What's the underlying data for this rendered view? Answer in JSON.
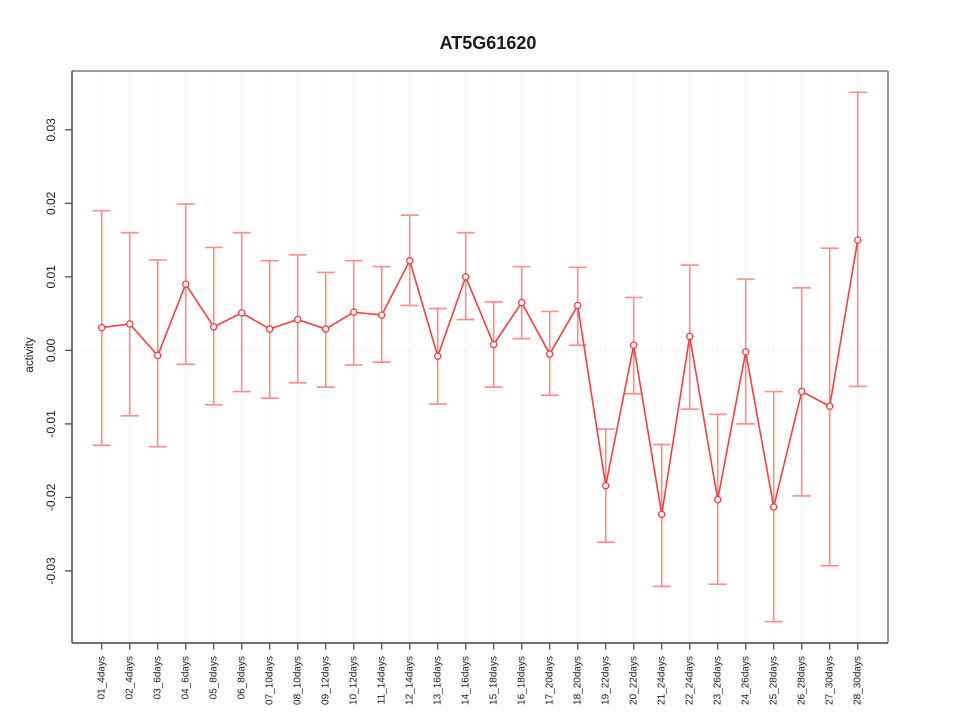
{
  "chart_data": {
    "type": "line",
    "title": "AT5G61620",
    "xlabel": "",
    "ylabel": "activity",
    "legend": "none",
    "grid": "vertical dotted gridlines at each category plus dotted horizontal line at y=0",
    "ylim": [
      -0.0398,
      0.038
    ],
    "yticks": [
      -0.03,
      -0.02,
      -0.01,
      0.0,
      0.01,
      0.02,
      0.03
    ],
    "ytick_labels": [
      "-0.03",
      "-0.02",
      "-0.01",
      "0.00",
      "0.01",
      "0.02",
      "0.03"
    ],
    "categories": [
      "01_4days",
      "02_4days",
      "03_6days",
      "04_6days",
      "05_8days",
      "06_8days",
      "07_10days",
      "08_10days",
      "09_12days",
      "10_12days",
      "11_14days",
      "12_14days",
      "13_16days",
      "14_16days",
      "15_18days",
      "16_18days",
      "17_20days",
      "18_20days",
      "19_22days",
      "20_22days",
      "21_24days",
      "22_24days",
      "23_26days",
      "24_26days",
      "25_28days",
      "26_28days",
      "27_30days",
      "28_30days"
    ],
    "series": [
      {
        "name": "activity",
        "marker": "open-circle",
        "values": [
          0.0031,
          0.0036,
          -0.0007,
          0.009,
          0.0032,
          0.0051,
          0.0029,
          0.0042,
          0.0029,
          0.0052,
          0.0048,
          0.0122,
          -0.0008,
          0.01,
          0.0008,
          0.0065,
          -0.0005,
          0.0061,
          -0.0184,
          0.0007,
          -0.0223,
          0.0019,
          -0.0203,
          -0.0002,
          -0.0213,
          -0.0056,
          -0.0076,
          0.015
        ],
        "upper": [
          0.019,
          0.016,
          0.0123,
          0.0199,
          0.014,
          0.016,
          0.0122,
          0.013,
          0.0106,
          0.0122,
          0.0114,
          0.0184,
          0.0057,
          0.016,
          0.0066,
          0.0114,
          0.0053,
          0.0113,
          -0.0107,
          0.0072,
          -0.0128,
          0.0116,
          -0.0087,
          0.0097,
          -0.0056,
          0.0085,
          0.0139,
          0.0351
        ],
        "lower": [
          -0.0129,
          -0.0089,
          -0.0131,
          -0.0019,
          -0.0074,
          -0.0056,
          -0.0065,
          -0.0044,
          -0.005,
          -0.002,
          -0.0016,
          0.0061,
          -0.0073,
          0.0042,
          -0.005,
          0.0016,
          -0.0061,
          0.0007,
          -0.0261,
          -0.0059,
          -0.0321,
          -0.008,
          -0.0318,
          -0.01,
          -0.0369,
          -0.0198,
          -0.0293,
          -0.0049
        ]
      }
    ],
    "colors": {
      "series_line": "#ee4343",
      "point_stroke": "#ee4343",
      "point_fill": "#ffffff",
      "error_bar": "#f59191",
      "grid_line": "#dcdcdc",
      "zero_line": "#e2e2e2",
      "frame_gray": "#9a9a9a",
      "axis_left": "#555555",
      "axis_bottom": "#444444",
      "tick": "#4d4d4d",
      "text": "#1a1a1a"
    }
  }
}
